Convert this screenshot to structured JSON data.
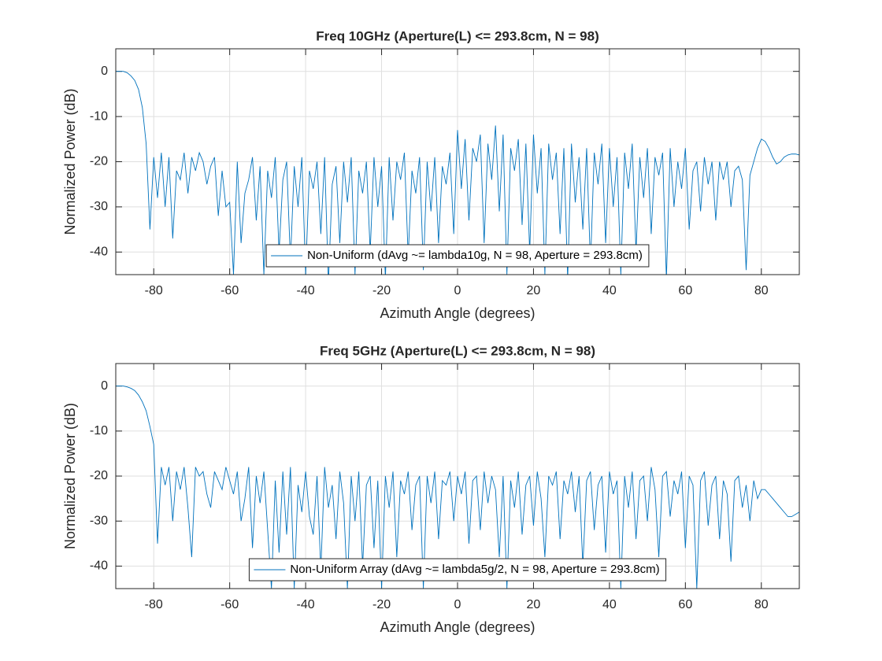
{
  "chart_data": [
    {
      "type": "line",
      "title": "Freq 10GHz (Aperture(L) <= 293.8cm, N = 98)",
      "xlabel": "Azimuth Angle (degrees)",
      "ylabel": "Normalized Power (dB)",
      "x": [
        -90,
        -89,
        -88,
        -87,
        -86,
        -85,
        -84,
        -83,
        -82,
        -81,
        -80,
        -79,
        -78,
        -77,
        -76,
        -75,
        -74,
        -73,
        -72,
        -71,
        -70,
        -69,
        -68,
        -67,
        -66,
        -65,
        -64,
        -63,
        -62,
        -61,
        -60,
        -59,
        -58,
        -57,
        -56,
        -55,
        -54,
        -53,
        -52,
        -51,
        -50,
        -49,
        -48,
        -47,
        -46,
        -45,
        -44,
        -43,
        -42,
        -41,
        -40,
        -39,
        -38,
        -37,
        -36,
        -35,
        -34,
        -33,
        -32,
        -31,
        -30,
        -29,
        -28,
        -27,
        -26,
        -25,
        -24,
        -23,
        -22,
        -21,
        -20,
        -19,
        -18,
        -17,
        -16,
        -15,
        -14,
        -13,
        -12,
        -11,
        -10,
        -9,
        -8,
        -7,
        -6,
        -5,
        -4,
        -3,
        -2,
        -1,
        0,
        1,
        2,
        3,
        4,
        5,
        6,
        7,
        8,
        9,
        10,
        11,
        12,
        13,
        14,
        15,
        16,
        17,
        18,
        19,
        20,
        21,
        22,
        23,
        24,
        25,
        26,
        27,
        28,
        29,
        30,
        31,
        32,
        33,
        34,
        35,
        36,
        37,
        38,
        39,
        40,
        41,
        42,
        43,
        44,
        45,
        46,
        47,
        48,
        49,
        50,
        51,
        52,
        53,
        54,
        55,
        56,
        57,
        58,
        59,
        60,
        61,
        62,
        63,
        64,
        65,
        66,
        67,
        68,
        69,
        70,
        71,
        72,
        73,
        74,
        75,
        76,
        77,
        78,
        79,
        80,
        81,
        82,
        83,
        84,
        85,
        86,
        87,
        88,
        89,
        90
      ],
      "series": [
        {
          "name": "Non-Uniform (dAvg ~= lambda10g, N = 98, Aperture = 293.8cm)",
          "color": "#0072bd",
          "values": [
            0,
            0,
            0,
            -0.3,
            -1,
            -2,
            -4,
            -8,
            -16,
            -35,
            -19,
            -28,
            -18,
            -30,
            -19,
            -37,
            -22,
            -24,
            -18,
            -27,
            -19,
            -22,
            -18,
            -20,
            -25,
            -21,
            -19,
            -32,
            -22,
            -30,
            -29,
            -45,
            -20,
            -38,
            -27,
            -24,
            -19,
            -33,
            -21,
            -45,
            -22,
            -28,
            -19,
            -40,
            -24,
            -20,
            -42,
            -21,
            -30,
            -19,
            -45,
            -22,
            -26,
            -20,
            -36,
            -19,
            -47,
            -25,
            -21,
            -38,
            -20,
            -29,
            -19,
            -45,
            -22,
            -27,
            -20,
            -40,
            -19,
            -30,
            -21,
            -46,
            -19,
            -33,
            -20,
            -24,
            -18,
            -41,
            -22,
            -27,
            -19,
            -44,
            -20,
            -31,
            -19,
            -38,
            -21,
            -25,
            -18,
            -36,
            -13,
            -26,
            -15,
            -33,
            -17,
            -20,
            -14,
            -38,
            -16,
            -24,
            -12,
            -31,
            -14,
            -45,
            -17,
            -22,
            -15,
            -34,
            -16,
            -40,
            -14,
            -27,
            -17,
            -45,
            -16,
            -24,
            -18,
            -36,
            -17,
            -46,
            -16,
            -29,
            -19,
            -35,
            -17,
            -43,
            -18,
            -25,
            -16,
            -38,
            -17,
            -30,
            -19,
            -45,
            -18,
            -26,
            -16,
            -40,
            -19,
            -28,
            -17,
            -36,
            -19,
            -23,
            -18,
            -46,
            -17,
            -30,
            -20,
            -26,
            -17,
            -35,
            -22,
            -20,
            -31,
            -19,
            -25,
            -20,
            -33,
            -20,
            -24,
            -20,
            -30,
            -22,
            -21,
            -24,
            -44,
            -23,
            -20,
            -17,
            -15,
            -15.5,
            -17,
            -19,
            -20.5,
            -20,
            -19,
            -18.5,
            -18.3,
            -18.3,
            -18.5
          ]
        }
      ],
      "xlim": [
        -90,
        90
      ],
      "ylim": [
        -45,
        5
      ],
      "xticks": [
        -80,
        -60,
        -40,
        -20,
        0,
        20,
        40,
        60,
        80
      ],
      "yticks": [
        -40,
        -30,
        -20,
        -10,
        0
      ],
      "grid": true,
      "legend": "south"
    },
    {
      "type": "line",
      "title": "Freq 5GHz (Aperture(L) <= 293.8cm, N = 98)",
      "xlabel": "Azimuth Angle (degrees)",
      "ylabel": "Normalized Power (dB)",
      "x": [
        -90,
        -89,
        -88,
        -87,
        -86,
        -85,
        -84,
        -83,
        -82,
        -81,
        -80,
        -79,
        -78,
        -77,
        -76,
        -75,
        -74,
        -73,
        -72,
        -71,
        -70,
        -69,
        -68,
        -67,
        -66,
        -65,
        -64,
        -63,
        -62,
        -61,
        -60,
        -59,
        -58,
        -57,
        -56,
        -55,
        -54,
        -53,
        -52,
        -51,
        -50,
        -49,
        -48,
        -47,
        -46,
        -45,
        -44,
        -43,
        -42,
        -41,
        -40,
        -39,
        -38,
        -37,
        -36,
        -35,
        -34,
        -33,
        -32,
        -31,
        -30,
        -29,
        -28,
        -27,
        -26,
        -25,
        -24,
        -23,
        -22,
        -21,
        -20,
        -19,
        -18,
        -17,
        -16,
        -15,
        -14,
        -13,
        -12,
        -11,
        -10,
        -9,
        -8,
        -7,
        -6,
        -5,
        -4,
        -3,
        -2,
        -1,
        0,
        1,
        2,
        3,
        4,
        5,
        6,
        7,
        8,
        9,
        10,
        11,
        12,
        13,
        14,
        15,
        16,
        17,
        18,
        19,
        20,
        21,
        22,
        23,
        24,
        25,
        26,
        27,
        28,
        29,
        30,
        31,
        32,
        33,
        34,
        35,
        36,
        37,
        38,
        39,
        40,
        41,
        42,
        43,
        44,
        45,
        46,
        47,
        48,
        49,
        50,
        51,
        52,
        53,
        54,
        55,
        56,
        57,
        58,
        59,
        60,
        61,
        62,
        63,
        64,
        65,
        66,
        67,
        68,
        69,
        70,
        71,
        72,
        73,
        74,
        75,
        76,
        77,
        78,
        79,
        80,
        81,
        82,
        83,
        84,
        85,
        86,
        87,
        88,
        89,
        90
      ],
      "series": [
        {
          "name": "Non-Uniform Array (dAvg ~= lambda5g/2, N = 98, Aperture = 293.8cm)",
          "color": "#0072bd",
          "values": [
            0,
            0,
            0,
            -0.2,
            -0.5,
            -1,
            -2,
            -3.5,
            -5.5,
            -9,
            -13,
            -35,
            -18,
            -22,
            -18,
            -30,
            -19,
            -23,
            -18,
            -27,
            -38,
            -18,
            -20,
            -19,
            -24,
            -27,
            -19,
            -21,
            -23,
            -18,
            -21,
            -24,
            -19,
            -30,
            -25,
            -18,
            -36,
            -20,
            -26,
            -19,
            -32,
            -45,
            -21,
            -37,
            -19,
            -33,
            -18,
            -45,
            -22,
            -28,
            -19,
            -29,
            -33,
            -20,
            -41,
            -18,
            -27,
            -22,
            -34,
            -19,
            -26,
            -45,
            -20,
            -30,
            -19,
            -40,
            -22,
            -20,
            -36,
            -21,
            -45,
            -20,
            -27,
            -19,
            -38,
            -21,
            -24,
            -19,
            -32,
            -22,
            -20,
            -45,
            -20,
            -26,
            -19,
            -34,
            -21,
            -22,
            -19,
            -30,
            -20,
            -24,
            -19,
            -35,
            -21,
            -20,
            -32,
            -19,
            -26,
            -20,
            -23,
            -38,
            -20,
            -45,
            -21,
            -27,
            -19,
            -33,
            -22,
            -20,
            -31,
            -19,
            -25,
            -38,
            -20,
            -22,
            -19,
            -34,
            -21,
            -24,
            -19,
            -28,
            -20,
            -40,
            -21,
            -19,
            -32,
            -22,
            -20,
            -37,
            -19,
            -24,
            -21,
            -45,
            -20,
            -27,
            -19,
            -34,
            -21,
            -20,
            -30,
            -18,
            -23,
            -38,
            -20,
            -19,
            -29,
            -21,
            -24,
            -19,
            -36,
            -20,
            -22,
            -45,
            -21,
            -19,
            -31,
            -22,
            -20,
            -34,
            -21,
            -24,
            -39,
            -21,
            -20,
            -27,
            -22,
            -30,
            -21,
            -25,
            -23,
            -23,
            -24,
            -25,
            -26,
            -27,
            -28,
            -29,
            -29,
            -28.5,
            -28
          ]
        }
      ],
      "xlim": [
        -90,
        90
      ],
      "ylim": [
        -45,
        5
      ],
      "xticks": [
        -80,
        -60,
        -40,
        -20,
        0,
        20,
        40,
        60,
        80
      ],
      "yticks": [
        -40,
        -30,
        -20,
        -10,
        0
      ],
      "grid": true,
      "legend": "south"
    }
  ]
}
